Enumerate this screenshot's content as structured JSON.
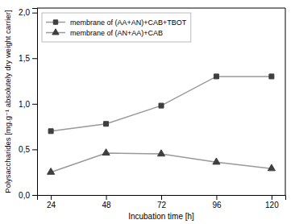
{
  "chart_data": {
    "type": "line",
    "x": [
      24,
      48,
      72,
      96,
      120
    ],
    "series": [
      {
        "name": "membrane of (AA+AN)+CAB+TBOT",
        "color": "#999999",
        "marker": "square",
        "values": [
          0.7,
          0.78,
          0.98,
          1.3,
          1.3
        ]
      },
      {
        "name": "membrane of (AN+AA)+CAB",
        "color": "#999999",
        "marker": "triangle",
        "values": [
          0.25,
          0.46,
          0.45,
          0.36,
          0.29
        ]
      }
    ],
    "xlabel": "Incubation time [h]",
    "ylabel": "Polysaccharides [mg.g⁻¹ absolutely dry weight carrier]",
    "xlim": [
      18,
      126
    ],
    "ylim": [
      0.0,
      2.05
    ],
    "xticks": [
      24,
      48,
      72,
      96,
      120
    ],
    "yticks": [
      {
        "value": 0.0,
        "label": "0,0"
      },
      {
        "value": 0.5,
        "label": "0,5"
      },
      {
        "value": 1.0,
        "label": "1,0"
      },
      {
        "value": 1.5,
        "label": "1,5"
      },
      {
        "value": 2.0,
        "label": "2,0"
      }
    ],
    "grid": false,
    "legend": "upper left"
  }
}
